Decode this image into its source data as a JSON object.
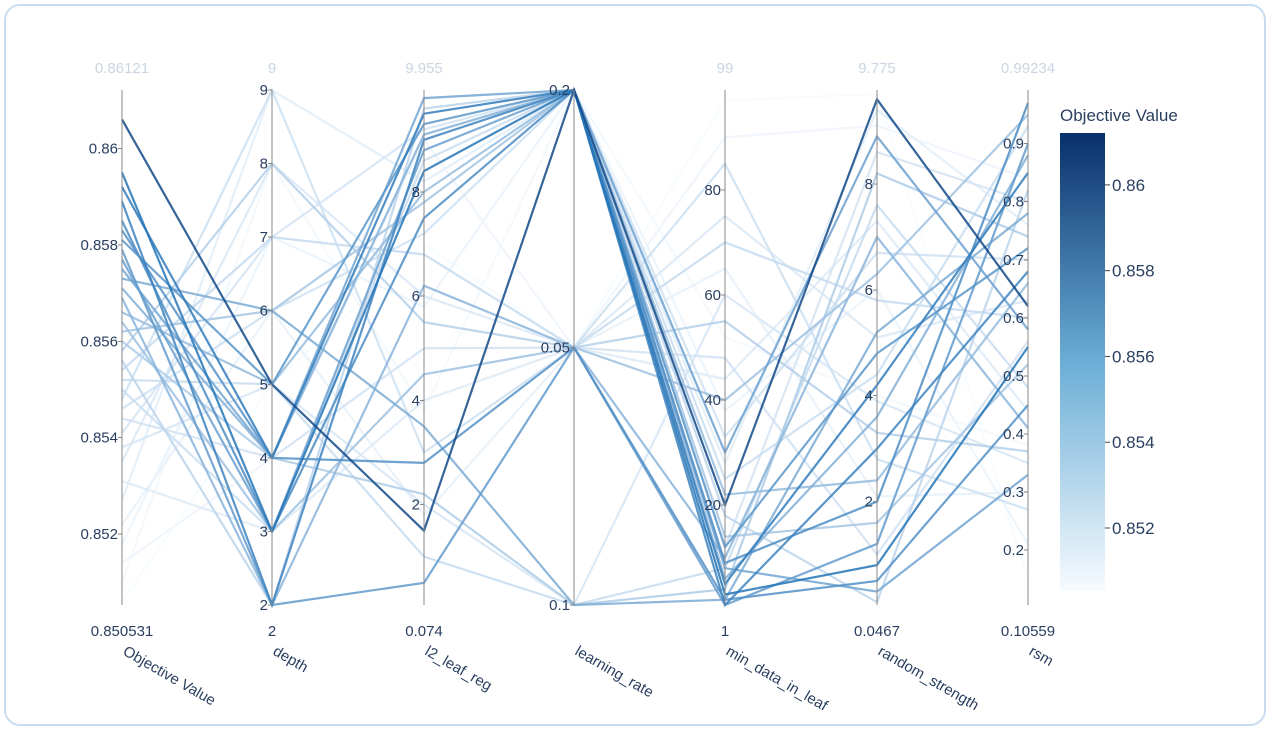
{
  "chart_data": {
    "type": "parallel_coordinates",
    "colorscale": [
      "#f7fbff",
      "#08306b"
    ],
    "color_range": [
      0.850531,
      0.86121
    ],
    "colorbar": {
      "title": "Objective Value",
      "ticks": [
        "0.852",
        "0.854",
        "0.856",
        "0.858",
        "0.86"
      ]
    },
    "dimensions": [
      {
        "key": "objective",
        "label": "Objective Value",
        "range": [
          0.850531,
          0.86121
        ],
        "min_label": "0.850531",
        "max_label": "0.86121",
        "ticks": [
          "0.852",
          "0.854",
          "0.856",
          "0.858",
          "0.86"
        ]
      },
      {
        "key": "depth",
        "label": "depth",
        "range": [
          2,
          9
        ],
        "min_label": "2",
        "max_label": "9",
        "ticks": [
          "2",
          "3",
          "4",
          "5",
          "6",
          "7",
          "8",
          "9"
        ]
      },
      {
        "key": "l2_leaf_reg",
        "label": "l2_leaf_reg",
        "range": [
          0.074,
          9.955
        ],
        "min_label": "0.074",
        "max_label": "9.955",
        "ticks": [
          "2",
          "4",
          "6",
          "8"
        ]
      },
      {
        "key": "learning_rate",
        "label": "learning_rate",
        "categorical": true,
        "categories": [
          "0.1",
          "0.05",
          "0.2"
        ],
        "ticks": [
          "0.1",
          "0.05",
          "0.2"
        ]
      },
      {
        "key": "min_data_in_leaf",
        "label": "min_data_in_leaf",
        "range": [
          1,
          99
        ],
        "min_label": "1",
        "max_label": "99",
        "ticks": [
          "20",
          "40",
          "60",
          "80"
        ]
      },
      {
        "key": "random_strength",
        "label": "random_strength",
        "range": [
          0.0467,
          9.775
        ],
        "min_label": "0.0467",
        "max_label": "9.775",
        "ticks": [
          "2",
          "4",
          "6",
          "8"
        ]
      },
      {
        "key": "rsm",
        "label": "rsm",
        "range": [
          0.10559,
          0.99234
        ],
        "min_label": "0.10559",
        "max_label": "0.99234",
        "ticks": [
          "0.2",
          "0.3",
          "0.4",
          "0.5",
          "0.6",
          "0.7",
          "0.8",
          "0.9"
        ]
      }
    ],
    "trials": [
      {
        "objective": 0.8606,
        "depth": 5,
        "l2_leaf_reg": 1.5,
        "learning_rate": "0.2",
        "min_data_in_leaf": 20,
        "random_strength": 9.6,
        "rsm": 0.62
      },
      {
        "objective": 0.8595,
        "depth": 3,
        "l2_leaf_reg": 8.4,
        "learning_rate": "0.2",
        "min_data_in_leaf": 3,
        "random_strength": 0.8,
        "rsm": 0.55
      },
      {
        "objective": 0.8592,
        "depth": 4,
        "l2_leaf_reg": 9.5,
        "learning_rate": "0.2",
        "min_data_in_leaf": 5,
        "random_strength": 4.2,
        "rsm": 0.85
      },
      {
        "objective": 0.8589,
        "depth": 2,
        "l2_leaf_reg": 9.0,
        "learning_rate": "0.2",
        "min_data_in_leaf": 1,
        "random_strength": 3.0,
        "rsm": 0.68
      },
      {
        "objective": 0.8585,
        "depth": 3,
        "l2_leaf_reg": 7.5,
        "learning_rate": "0.2",
        "min_data_in_leaf": 9,
        "random_strength": 2.0,
        "rsm": 0.97
      },
      {
        "objective": 0.8583,
        "depth": 4,
        "l2_leaf_reg": 2.8,
        "learning_rate": "0.05",
        "min_data_in_leaf": 2,
        "random_strength": 0.5,
        "rsm": 0.45
      },
      {
        "objective": 0.8581,
        "depth": 5,
        "l2_leaf_reg": 9.3,
        "learning_rate": "0.2",
        "min_data_in_leaf": 12,
        "random_strength": 4.8,
        "rsm": 0.72
      },
      {
        "objective": 0.8579,
        "depth": 2,
        "l2_leaf_reg": 0.5,
        "learning_rate": "0.05",
        "min_data_in_leaf": 1,
        "random_strength": 1.2,
        "rsm": 0.9
      },
      {
        "objective": 0.8577,
        "depth": 3,
        "l2_leaf_reg": 8.8,
        "learning_rate": "0.2",
        "min_data_in_leaf": 30,
        "random_strength": 8.9,
        "rsm": 0.58
      },
      {
        "objective": 0.8575,
        "depth": 4,
        "l2_leaf_reg": 9.8,
        "learning_rate": "0.2",
        "min_data_in_leaf": 8,
        "random_strength": 0.3,
        "rsm": 0.33
      },
      {
        "objective": 0.8573,
        "depth": 6,
        "l2_leaf_reg": 3.5,
        "learning_rate": "0.1",
        "min_data_in_leaf": 2,
        "random_strength": 5.2,
        "rsm": 0.78
      },
      {
        "objective": 0.8571,
        "depth": 4,
        "l2_leaf_reg": 9.1,
        "learning_rate": "0.2",
        "min_data_in_leaf": 6,
        "random_strength": 3.6,
        "rsm": 0.88
      },
      {
        "objective": 0.8569,
        "depth": 2,
        "l2_leaf_reg": 6.2,
        "learning_rate": "0.05",
        "min_data_in_leaf": 10,
        "random_strength": 7.0,
        "rsm": 0.41
      },
      {
        "objective": 0.8566,
        "depth": 5,
        "l2_leaf_reg": 8.0,
        "learning_rate": "0.2",
        "min_data_in_leaf": 22,
        "random_strength": 2.4,
        "rsm": 0.66
      },
      {
        "objective": 0.8564,
        "depth": 3,
        "l2_leaf_reg": 4.5,
        "learning_rate": "0.05",
        "min_data_in_leaf": 40,
        "random_strength": 6.3,
        "rsm": 0.95
      },
      {
        "objective": 0.8562,
        "depth": 6,
        "l2_leaf_reg": 7.8,
        "learning_rate": "0.2",
        "min_data_in_leaf": 14,
        "random_strength": 1.6,
        "rsm": 0.52
      },
      {
        "objective": 0.856,
        "depth": 4,
        "l2_leaf_reg": 2.2,
        "learning_rate": "0.1",
        "min_data_in_leaf": 4,
        "random_strength": 8.2,
        "rsm": 0.74
      },
      {
        "objective": 0.8558,
        "depth": 8,
        "l2_leaf_reg": 5.5,
        "learning_rate": "0.05",
        "min_data_in_leaf": 55,
        "random_strength": 3.3,
        "rsm": 0.37
      },
      {
        "objective": 0.8556,
        "depth": 2,
        "l2_leaf_reg": 9.6,
        "learning_rate": "0.2",
        "min_data_in_leaf": 18,
        "random_strength": 0.1,
        "rsm": 0.82
      },
      {
        "objective": 0.8554,
        "depth": 7,
        "l2_leaf_reg": 6.8,
        "learning_rate": "0.05",
        "min_data_in_leaf": 70,
        "random_strength": 5.8,
        "rsm": 0.6
      },
      {
        "objective": 0.8552,
        "depth": 5,
        "l2_leaf_reg": 1.0,
        "learning_rate": "0.1",
        "min_data_in_leaf": 8,
        "random_strength": 7.6,
        "rsm": 0.48
      },
      {
        "objective": 0.855,
        "depth": 3,
        "l2_leaf_reg": 8.6,
        "learning_rate": "0.2",
        "min_data_in_leaf": 25,
        "random_strength": 4.4,
        "rsm": 0.93
      },
      {
        "objective": 0.8548,
        "depth": 9,
        "l2_leaf_reg": 3.0,
        "learning_rate": "0.05",
        "min_data_in_leaf": 85,
        "random_strength": 2.8,
        "rsm": 0.27
      },
      {
        "objective": 0.8546,
        "depth": 6,
        "l2_leaf_reg": 7.2,
        "learning_rate": "0.2",
        "min_data_in_leaf": 33,
        "random_strength": 6.7,
        "rsm": 0.7
      },
      {
        "objective": 0.8544,
        "depth": 4,
        "l2_leaf_reg": 5.0,
        "learning_rate": "0.05",
        "min_data_in_leaf": 48,
        "random_strength": 1.0,
        "rsm": 0.56
      },
      {
        "objective": 0.8541,
        "depth": 7,
        "l2_leaf_reg": 9.2,
        "learning_rate": "0.2",
        "min_data_in_leaf": 12,
        "random_strength": 8.6,
        "rsm": 0.8
      },
      {
        "objective": 0.8538,
        "depth": 5,
        "l2_leaf_reg": 2.0,
        "learning_rate": "0.1",
        "min_data_in_leaf": 60,
        "random_strength": 3.9,
        "rsm": 0.35
      },
      {
        "objective": 0.8535,
        "depth": 8,
        "l2_leaf_reg": 6.0,
        "learning_rate": "0.05",
        "min_data_in_leaf": 75,
        "random_strength": 5.1,
        "rsm": 0.63
      },
      {
        "objective": 0.8531,
        "depth": 3,
        "l2_leaf_reg": 4.0,
        "learning_rate": "0.05",
        "min_data_in_leaf": 44,
        "random_strength": 7.3,
        "rsm": 0.44
      },
      {
        "objective": 0.8527,
        "depth": 9,
        "l2_leaf_reg": 8.2,
        "learning_rate": "0.2",
        "min_data_in_leaf": 28,
        "random_strength": 9.4,
        "rsm": 0.76
      },
      {
        "objective": 0.8522,
        "depth": 6,
        "l2_leaf_reg": 1.8,
        "learning_rate": "0.05",
        "min_data_in_leaf": 65,
        "random_strength": 2.1,
        "rsm": 0.3
      },
      {
        "objective": 0.8518,
        "depth": 7,
        "l2_leaf_reg": 5.8,
        "learning_rate": "0.2",
        "min_data_in_leaf": 38,
        "random_strength": 6.0,
        "rsm": 0.21
      },
      {
        "objective": 0.8514,
        "depth": 4,
        "l2_leaf_reg": 9.0,
        "learning_rate": "0.05",
        "min_data_in_leaf": 90,
        "random_strength": 9.1,
        "rsm": 0.84
      },
      {
        "objective": 0.851,
        "depth": 8,
        "l2_leaf_reg": 3.8,
        "learning_rate": "0.2",
        "min_data_in_leaf": 52,
        "random_strength": 4.0,
        "rsm": 0.38
      },
      {
        "objective": 0.8506,
        "depth": 5,
        "l2_leaf_reg": 7.0,
        "learning_rate": "0.05",
        "min_data_in_leaf": 97,
        "random_strength": 9.7,
        "rsm": 0.15
      }
    ]
  }
}
